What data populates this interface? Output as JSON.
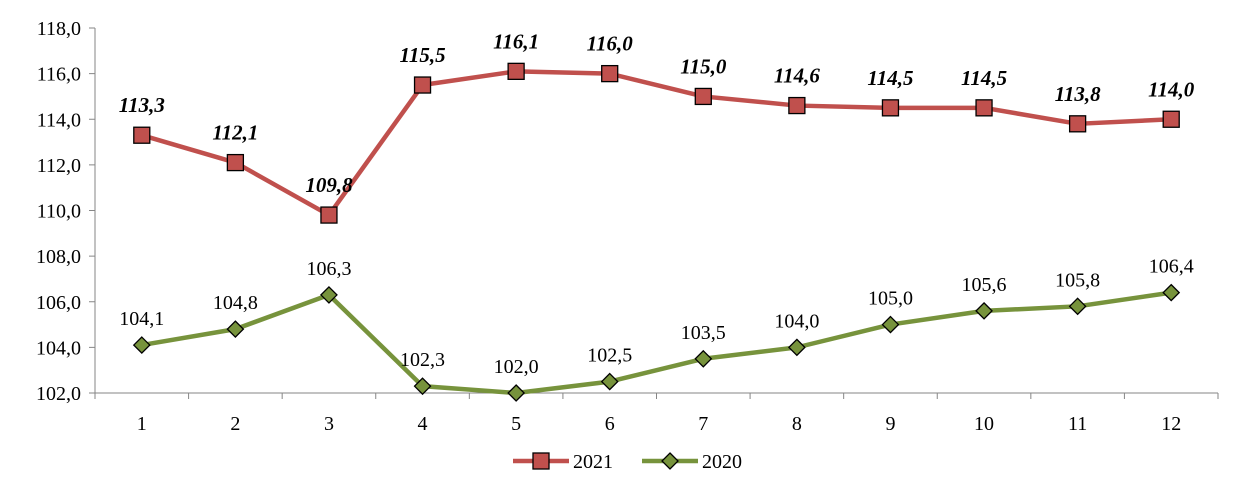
{
  "chart_data": {
    "type": "line",
    "categories": [
      "1",
      "2",
      "3",
      "4",
      "5",
      "6",
      "7",
      "8",
      "9",
      "10",
      "11",
      "12"
    ],
    "series": [
      {
        "name": "2021",
        "values": [
          113.3,
          112.1,
          109.8,
          115.5,
          116.1,
          116.0,
          115.0,
          114.6,
          114.5,
          114.5,
          113.8,
          114.0
        ],
        "labels": [
          "113,3",
          "112,1",
          "109,8",
          "115,5",
          "116,1",
          "116,0",
          "115,0",
          "114,6",
          "114,5",
          "114,5",
          "113,8",
          "114,0"
        ],
        "line_color": "#c0504d",
        "marker_color": "#c0504d",
        "marker": "square"
      },
      {
        "name": "2020",
        "values": [
          104.1,
          104.8,
          106.3,
          102.3,
          102.0,
          102.5,
          103.5,
          104.0,
          105.0,
          105.6,
          105.8,
          106.4
        ],
        "labels": [
          "104,1",
          "104,8",
          "106,3",
          "102,3",
          "102,0",
          "102,5",
          "103,5",
          "104,0",
          "105,0",
          "105,6",
          "105,8",
          "106,4"
        ],
        "line_color": "#77933c",
        "marker_color": "#77933c",
        "marker": "diamond"
      }
    ],
    "yticks": [
      "102,0",
      "104,0",
      "106,0",
      "108,0",
      "110,0",
      "112,0",
      "114,0",
      "116,0",
      "118,0"
    ],
    "ylim": [
      102,
      118
    ],
    "title": "",
    "xlabel": "",
    "ylabel": "",
    "grid": false,
    "legend": "bottom"
  }
}
